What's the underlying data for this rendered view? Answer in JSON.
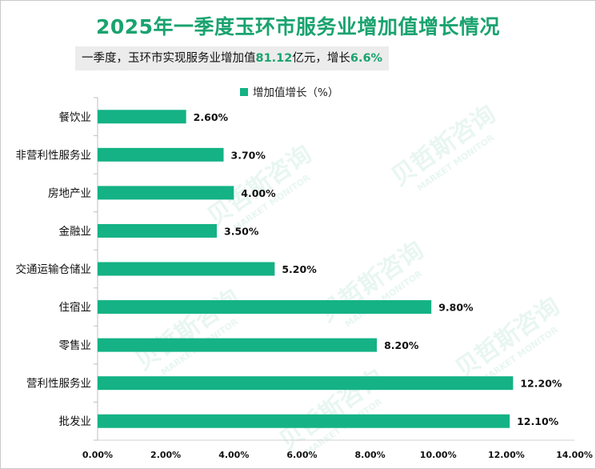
{
  "header": {
    "title": "2025年一季度玉环市服务业增加值增长情况",
    "subtitle_prefix": "一季度，玉环市实现服务业增加值",
    "subtitle_value": "81.12",
    "subtitle_mid": "亿元，增长",
    "subtitle_growth": "6.6%"
  },
  "watermark": {
    "brand": "贝哲斯咨询",
    "brand_en": "MARKET MONITOR"
  },
  "colors": {
    "bar": "#14b285",
    "title": "#1aa36f"
  },
  "chart_data": {
    "type": "bar",
    "orientation": "horizontal",
    "title": "2025年一季度玉环市服务业增加值增长情况",
    "categories": [
      "餐饮业",
      "非营利性服务业",
      "房地产业",
      "金融业",
      "交通运输仓储业",
      "住宿业",
      "零售业",
      "营利性服务业",
      "批发业"
    ],
    "series": [
      {
        "name": "增加值增长（%）",
        "values": [
          2.6,
          3.7,
          4.0,
          3.5,
          5.2,
          9.8,
          8.2,
          12.2,
          12.1
        ],
        "labels": [
          "2.60%",
          "3.70%",
          "4.00%",
          "3.50%",
          "5.20%",
          "9.80%",
          "8.20%",
          "12.20%",
          "12.10%"
        ]
      }
    ],
    "xlim": [
      0,
      14
    ],
    "xticks": [
      "0.00%",
      "2.00%",
      "4.00%",
      "6.00%",
      "8.00%",
      "10.00%",
      "12.00%",
      "14.00%"
    ],
    "grid": false,
    "legend_position": "top"
  }
}
